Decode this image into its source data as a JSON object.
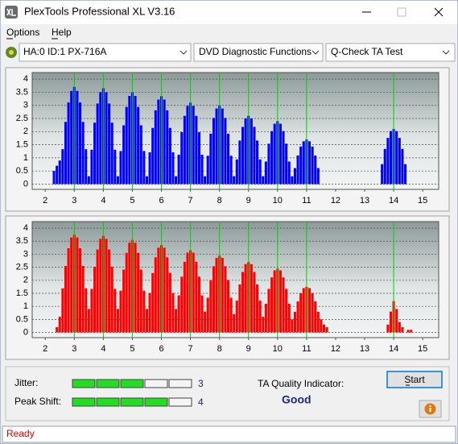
{
  "window": {
    "title": "PlexTools Professional XL V3.16"
  },
  "menu": [
    "Options",
    "Help"
  ],
  "toolbar": {
    "drive": "HA:0 ID:1  PX-716A",
    "function": "DVD Diagnostic Functions",
    "test": "Q-Check TA Test"
  },
  "chart_data": [
    {
      "type": "bar",
      "color": "#0000ff",
      "marker_color": "#00d000",
      "grid": true,
      "xlim": [
        1.55,
        15.55
      ],
      "xticks": [
        2,
        3,
        4,
        5,
        6,
        7,
        8,
        9,
        10,
        11,
        12,
        13,
        14,
        15
      ],
      "ylim": [
        -0.2,
        4.25
      ],
      "yticks": [
        0,
        0.5,
        1,
        1.5,
        2,
        2.5,
        3,
        3.5,
        4
      ],
      "markers": [
        3,
        4,
        5,
        6,
        7,
        8,
        9,
        10,
        11,
        14
      ],
      "x": [
        2.3,
        2.4,
        2.5,
        2.6,
        2.7,
        2.8,
        2.9,
        3.0,
        3.1,
        3.2,
        3.3,
        3.4,
        3.5,
        3.6,
        3.7,
        3.8,
        3.9,
        4.0,
        4.1,
        4.2,
        4.3,
        4.4,
        4.5,
        4.6,
        4.7,
        4.8,
        4.9,
        5.0,
        5.1,
        5.2,
        5.3,
        5.4,
        5.5,
        5.6,
        5.7,
        5.8,
        5.9,
        6.0,
        6.1,
        6.2,
        6.3,
        6.4,
        6.5,
        6.6,
        6.7,
        6.8,
        6.9,
        7.0,
        7.1,
        7.2,
        7.3,
        7.4,
        7.5,
        7.6,
        7.7,
        7.8,
        7.9,
        8.0,
        8.1,
        8.2,
        8.3,
        8.4,
        8.5,
        8.6,
        8.7,
        8.8,
        8.9,
        9.0,
        9.1,
        9.2,
        9.3,
        9.4,
        9.5,
        9.6,
        9.7,
        9.8,
        9.9,
        10.0,
        10.1,
        10.2,
        10.3,
        10.4,
        10.5,
        10.6,
        10.7,
        10.8,
        10.9,
        11.0,
        11.1,
        11.2,
        11.3,
        11.4,
        13.6,
        13.7,
        13.8,
        13.9,
        14.0,
        14.1,
        14.2,
        14.3,
        14.4
      ],
      "values": [
        0.5,
        0.7,
        0.9,
        1.33,
        2.37,
        3.11,
        3.55,
        3.7,
        3.55,
        3.11,
        2.37,
        1.33,
        0.3,
        1.31,
        2.34,
        3.07,
        3.5,
        3.65,
        3.5,
        3.07,
        2.34,
        1.31,
        0.3,
        1.26,
        2.24,
        2.94,
        3.36,
        3.5,
        3.36,
        2.94,
        2.24,
        1.26,
        0.3,
        1.21,
        2.14,
        2.81,
        3.22,
        3.35,
        3.22,
        2.81,
        2.14,
        1.21,
        0.3,
        1.12,
        1.98,
        2.6,
        2.98,
        3.1,
        2.98,
        2.6,
        1.98,
        1.12,
        0.3,
        1.08,
        1.92,
        2.52,
        2.88,
        3.0,
        2.88,
        2.52,
        1.92,
        1.08,
        0.3,
        0.94,
        1.66,
        2.18,
        2.5,
        2.6,
        2.5,
        2.18,
        1.66,
        0.94,
        0.3,
        0.86,
        1.54,
        2.02,
        2.3,
        2.4,
        2.3,
        2.02,
        1.54,
        0.86,
        0.3,
        0.61,
        1.09,
        1.43,
        1.63,
        1.7,
        1.63,
        1.43,
        1.09,
        0.61,
        0.76,
        1.34,
        1.76,
        2.02,
        2.1,
        2.02,
        1.76,
        1.34,
        0.76
      ]
    },
    {
      "type": "bar",
      "color": "#ff0000",
      "marker_color": "#00d000",
      "grid": true,
      "xlim": [
        1.55,
        15.55
      ],
      "xticks": [
        2,
        3,
        4,
        5,
        6,
        7,
        8,
        9,
        10,
        11,
        12,
        13,
        14,
        15
      ],
      "ylim": [
        -0.2,
        4.25
      ],
      "yticks": [
        0,
        0.5,
        1,
        1.5,
        2,
        2.5,
        3,
        3.5,
        4
      ],
      "markers": [
        3,
        4,
        5,
        6,
        7,
        8,
        9,
        10,
        11,
        14
      ],
      "x": [
        2.4,
        2.5,
        2.6,
        2.7,
        2.8,
        2.9,
        3.0,
        3.1,
        3.2,
        3.3,
        3.4,
        3.5,
        3.6,
        3.7,
        3.8,
        3.9,
        4.0,
        4.1,
        4.2,
        4.3,
        4.4,
        4.5,
        4.6,
        4.7,
        4.8,
        4.9,
        5.0,
        5.1,
        5.2,
        5.3,
        5.4,
        5.5,
        5.6,
        5.7,
        5.8,
        5.9,
        6.0,
        6.1,
        6.2,
        6.3,
        6.4,
        6.5,
        6.6,
        6.7,
        6.8,
        6.9,
        7.0,
        7.1,
        7.2,
        7.3,
        7.4,
        7.5,
        7.6,
        7.7,
        7.8,
        7.9,
        8.0,
        8.1,
        8.2,
        8.3,
        8.4,
        8.5,
        8.6,
        8.7,
        8.8,
        8.9,
        9.0,
        9.1,
        9.2,
        9.3,
        9.4,
        9.5,
        9.6,
        9.7,
        9.8,
        9.9,
        10.0,
        10.1,
        10.2,
        10.3,
        10.4,
        10.5,
        10.6,
        10.7,
        10.8,
        10.9,
        11.0,
        11.1,
        11.2,
        11.3,
        11.4,
        11.5,
        11.6,
        11.7,
        13.8,
        13.9,
        14.0,
        14.1,
        14.2,
        14.3,
        14.5,
        14.6
      ],
      "values": [
        0.2,
        0.6,
        1.69,
        2.55,
        3.23,
        3.64,
        3.75,
        3.64,
        3.23,
        2.55,
        1.69,
        0.9,
        1.67,
        2.52,
        3.18,
        3.59,
        3.7,
        3.59,
        3.18,
        2.52,
        1.67,
        0.9,
        1.6,
        2.41,
        3.05,
        3.44,
        3.55,
        3.44,
        3.05,
        2.41,
        1.6,
        0.9,
        1.51,
        2.28,
        2.88,
        3.25,
        3.35,
        3.25,
        2.88,
        2.28,
        1.51,
        0.9,
        1.42,
        2.14,
        2.71,
        3.06,
        3.15,
        3.06,
        2.71,
        2.14,
        1.42,
        0.8,
        1.33,
        2.01,
        2.54,
        2.86,
        2.95,
        2.86,
        2.54,
        2.01,
        1.33,
        0.7,
        1.22,
        1.84,
        2.32,
        2.62,
        2.7,
        2.62,
        2.32,
        1.84,
        1.22,
        0.6,
        1.1,
        1.67,
        2.11,
        2.38,
        2.45,
        2.38,
        2.11,
        1.67,
        1.1,
        0.5,
        0.79,
        1.19,
        1.51,
        1.7,
        1.75,
        1.7,
        1.51,
        1.19,
        0.79,
        0.5,
        0.3,
        0.2,
        0.3,
        0.8,
        1.2,
        0.9,
        0.4,
        0.2,
        0.1,
        0.1
      ]
    }
  ],
  "panel": {
    "jitter": {
      "label": "Jitter:",
      "value": 3
    },
    "peak_shift": {
      "label": "Peak Shift:",
      "value": 4
    },
    "ta_quality": {
      "label": "TA Quality Indicator:",
      "result": "Good"
    },
    "start_button": "Start"
  },
  "status": "Ready"
}
